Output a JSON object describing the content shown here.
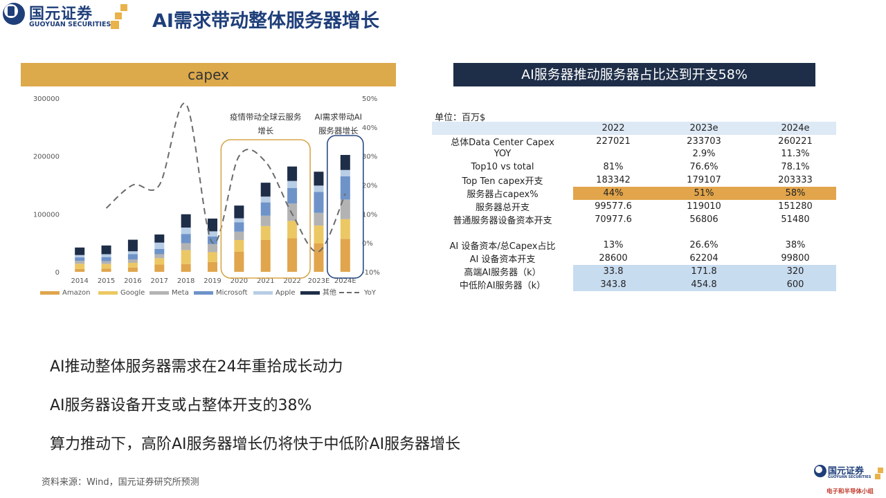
{
  "header": {
    "logo_cn": "国元证券",
    "logo_en": "GUOYUAN SECURITIES",
    "title": "AI需求带动整体服务器增长"
  },
  "colors": {
    "brand_blue": "#1f3f7a",
    "gold": "#dca94b",
    "navy": "#1e2e48",
    "amazon": "#e0a54d",
    "google": "#ecc864",
    "meta": "#b3b3b3",
    "microsoft": "#6e93c9",
    "apple": "#b8cde6",
    "other": "#1e2e48",
    "yoy": "#6a6a6a"
  },
  "chart_panel": {
    "header": "capex"
  },
  "chart_data": {
    "type": "bar",
    "stacked": true,
    "categories": [
      "2014",
      "2015",
      "2016",
      "2017",
      "2018",
      "2019",
      "2020",
      "2021",
      "2022",
      "2023E",
      "2024E"
    ],
    "ylim": [
      0,
      300000
    ],
    "y_ticks": [
      "0",
      "100000",
      "200000",
      "300000"
    ],
    "y2lim": [
      -10,
      50
    ],
    "y2_ticks": [
      "-10%",
      "0%",
      "10%",
      "20%",
      "30%",
      "40%",
      "50%"
    ],
    "series": [
      {
        "name": "Amazon",
        "values": [
          5000,
          5500,
          7500,
          12500,
          13500,
          17000,
          35000,
          55000,
          58000,
          49000,
          57000
        ]
      },
      {
        "name": "Google",
        "values": [
          9000,
          8000,
          8000,
          11000,
          24000,
          17000,
          20000,
          24000,
          30000,
          31000,
          34000
        ]
      },
      {
        "name": "Meta",
        "values": [
          5000,
          5000,
          6000,
          7000,
          12000,
          14000,
          14500,
          18000,
          30000,
          22000,
          34000
        ]
      },
      {
        "name": "Microsoft",
        "values": [
          6000,
          7000,
          9000,
          9000,
          16000,
          13000,
          16000,
          23000,
          27000,
          36000,
          40000
        ]
      },
      {
        "name": "Apple",
        "values": [
          4000,
          5000,
          5000,
          11000,
          11000,
          9000,
          7000,
          10000,
          12000,
          11000,
          11000
        ]
      },
      {
        "name": "其他",
        "values": [
          13000,
          15000,
          20000,
          14000,
          23000,
          22000,
          22000,
          24000,
          25000,
          24000,
          26000
        ]
      }
    ],
    "yoy": {
      "name": "YoY",
      "values": [
        null,
        12,
        20,
        20,
        48,
        0,
        30,
        28,
        10,
        -3,
        17
      ]
    },
    "annotations": [
      {
        "text": "疫情带动全球云服务增长",
        "lines": [
          "疫情带动全球云服务",
          "增长"
        ]
      },
      {
        "text": "AI需求带动AI服务器增长",
        "lines": [
          "AI需求带动AI",
          "服务器增长"
        ]
      }
    ],
    "legend_position": "bottom"
  },
  "table_panel": {
    "header": "AI服务器推动服务器占比达到开支58%",
    "unit": "单位：百万$",
    "columns": [
      "",
      "2022",
      "2023e",
      "2024e"
    ],
    "rows": [
      {
        "label": "总体Data Center Capex",
        "values": [
          "227021",
          "233703",
          "260221"
        ],
        "style": "plain"
      },
      {
        "label": "YOY",
        "values": [
          "",
          "2.9%",
          "11.3%"
        ],
        "style": "plain"
      },
      {
        "label": "Top10 vs total",
        "values": [
          "81%",
          "76.6%",
          "78.1%"
        ],
        "style": "plain"
      },
      {
        "label": "Top Ten capex开支",
        "values": [
          "183342",
          "179107",
          "203333"
        ],
        "style": "plain"
      },
      {
        "label": "服务器占capex%",
        "values": [
          "44%",
          "51%",
          "58%"
        ],
        "style": "orange"
      },
      {
        "label": "服务器总开支",
        "values": [
          "99577.6",
          "119010",
          "151280"
        ],
        "style": "plain"
      },
      {
        "label": "普通服务器设备资本开支",
        "values": [
          "70977.6",
          "56806",
          "51480"
        ],
        "style": "plain"
      },
      {
        "label": "",
        "values": [
          "",
          "",
          ""
        ],
        "style": "spacer"
      },
      {
        "label": "AI 设备资本/总Capex占比",
        "values": [
          "13%",
          "26.6%",
          "38%"
        ],
        "style": "plain"
      },
      {
        "label": "AI 设备资本开支",
        "values": [
          "28600",
          "62204",
          "99800"
        ],
        "style": "plain"
      },
      {
        "label": "高端AI服务器（k）",
        "values": [
          "33.8",
          "171.8",
          "320"
        ],
        "style": "blue"
      },
      {
        "label": "中低阶AI服务器（k）",
        "values": [
          "343.8",
          "454.8",
          "600"
        ],
        "style": "blue"
      }
    ]
  },
  "bullets": [
    "AI推动整体服务器需求在24年重拾成长动力",
    "AI服务器设备开支或占整体开支的38%",
    "算力推动下，高阶AI服务器增长仍将快于中低阶AI服务器增长"
  ],
  "source_note": "资料来源：Wind，国元证券研究所预测",
  "footer_logo": {
    "cn": "国元证券",
    "en": "GUOYUAN SECURITIES",
    "group": "电子和半导体小组"
  }
}
